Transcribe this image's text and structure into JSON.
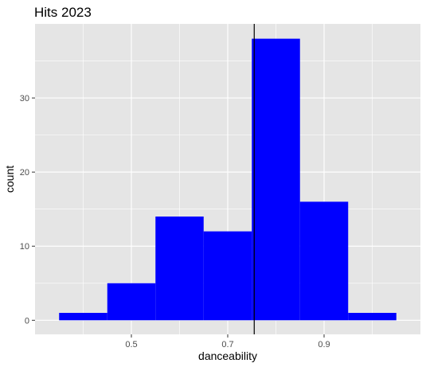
{
  "chart_data": {
    "type": "bar",
    "title": "Hits 2023",
    "xlabel": "danceability",
    "ylabel": "count",
    "bins": [
      {
        "start": 0.35,
        "end": 0.45,
        "count": 1
      },
      {
        "start": 0.45,
        "end": 0.55,
        "count": 5
      },
      {
        "start": 0.55,
        "end": 0.65,
        "count": 14
      },
      {
        "start": 0.65,
        "end": 0.75,
        "count": 12
      },
      {
        "start": 0.75,
        "end": 0.85,
        "count": 38
      },
      {
        "start": 0.85,
        "end": 0.95,
        "count": 16
      },
      {
        "start": 0.95,
        "end": 1.05,
        "count": 1
      }
    ],
    "xlim": [
      0.3,
      1.1
    ],
    "ylim": [
      -1.9,
      40
    ],
    "x_major_ticks": [
      0.5,
      0.7,
      0.9
    ],
    "x_minor_ticks": [
      0.4,
      0.6,
      0.8,
      1.0
    ],
    "y_major_ticks": [
      0,
      10,
      20,
      30
    ],
    "y_minor_ticks": [
      5,
      15,
      25,
      35
    ],
    "reference_line_x": 0.755,
    "bar_color": "#0000ff",
    "panel_background": "#e5e5e5",
    "grid_color": "#ffffff",
    "reference_line_color": "#000000",
    "grid": true,
    "legend": "none"
  }
}
